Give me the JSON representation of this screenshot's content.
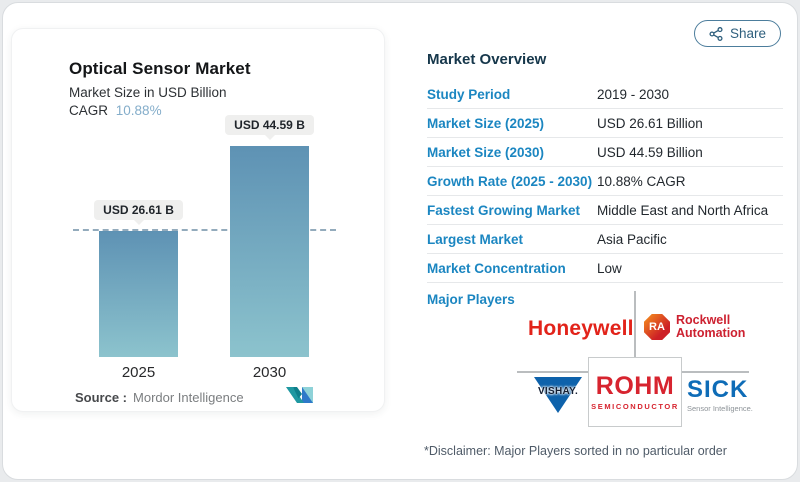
{
  "share": {
    "label": "Share"
  },
  "chart": {
    "title": "Optical Sensor Market",
    "subtitle": "Market Size in USD Billion",
    "cagr_label": "CAGR",
    "cagr_value": "10.88%",
    "source_label": "Source :",
    "source_value": "Mordor Intelligence"
  },
  "chart_data": {
    "type": "bar",
    "title": "Optical Sensor Market",
    "ylabel": "Market Size in USD Billion",
    "categories": [
      "2025",
      "2030"
    ],
    "values": [
      26.61,
      44.59
    ],
    "value_labels": [
      "USD 26.61 B",
      "USD 44.59 B"
    ],
    "ylim": [
      0,
      44.59
    ],
    "grid": "off",
    "reference_line_at": 26.61,
    "bar_gradient": [
      "#5e92b4",
      "#8cc3cd"
    ]
  },
  "overview": {
    "title": "Market Overview",
    "rows": [
      {
        "label": "Study Period",
        "value": "2019 - 2030"
      },
      {
        "label": "Market Size (2025)",
        "value": "USD 26.61 Billion"
      },
      {
        "label": "Market Size (2030)",
        "value": "USD 44.59 Billion"
      },
      {
        "label": "Growth Rate (2025 - 2030)",
        "value": "10.88% CAGR"
      },
      {
        "label": "Fastest Growing Market",
        "value": "Middle East and North Africa"
      },
      {
        "label": "Largest Market",
        "value": "Asia Pacific"
      },
      {
        "label": "Market Concentration",
        "value": "Low"
      }
    ],
    "major_players_label": "Major Players",
    "disclaimer": "*Disclaimer: Major Players sorted in no particular order"
  },
  "players": {
    "honeywell": "Honeywell",
    "rockwell_badge": "RA",
    "rockwell_line1": "Rockwell",
    "rockwell_line2": "Automation",
    "vishay": "VISHAY.",
    "rohm": "ROHM",
    "rohm_sub": "SEMICONDUCTOR",
    "sick": "SICK",
    "sick_sub": "Sensor Intelligence."
  },
  "colors": {
    "accent_blue": "#1b86c1",
    "header_navy": "#16374b",
    "cagr_value_blue": "#84adca",
    "bar_top": "#5e92b4",
    "bar_bottom": "#8cc3cd",
    "logo_red": "#cd2130",
    "vishay_blue": "#0e62ab",
    "sick_blue": "#0e6cb7",
    "page_bg": "#e9ebed"
  }
}
